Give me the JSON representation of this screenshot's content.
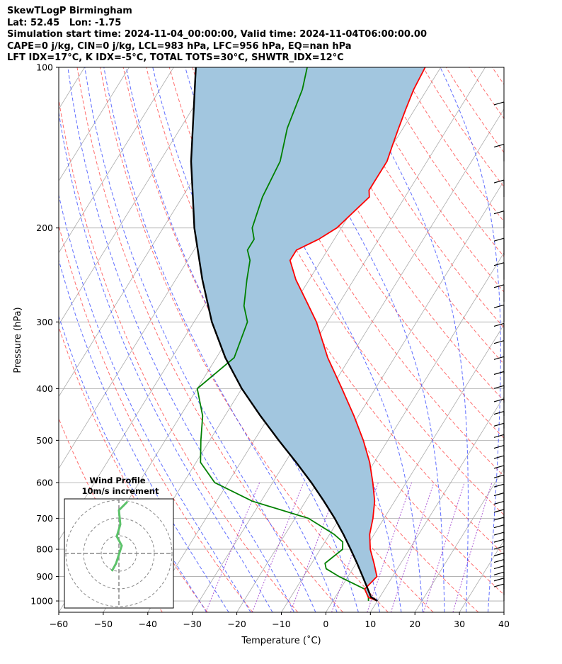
{
  "header": {
    "title": "SkewTLogP Birmingham",
    "location": "Lat: 52.45   Lon: -1.75",
    "times": "Simulation start time: 2024-11-04_00:00:00, Valid time: 2024-11-04T06:00:00.00",
    "indices_1": "CAPE=0 j/kg, CIN=0 j/kg, LCL=983 hPa, LFC=956 hPa, EQ=nan hPa",
    "indices_2": "LFT IDX=17°C, K IDX=-5°C, TOTAL TOTS=30°C, SHWTR_IDX=12°C"
  },
  "colors": {
    "temperature": "#ff0000",
    "dewpoint": "#008000",
    "parcel": "#000000",
    "fill": "#a2c6df",
    "dry_adiabat": "#ff5555",
    "moist_adiabat": "#4455ff",
    "mixing_ratio": "#9933cc",
    "isotherm": "#aaaaaa"
  },
  "chart_data": {
    "type": "line",
    "title": "",
    "xlabel": "Temperature (˚C)",
    "ylabel": "Pressure (hPa)",
    "xlim": [
      -60,
      40
    ],
    "ylim": [
      1050,
      100
    ],
    "y_scale": "log",
    "grid": true,
    "x_ticks": [
      -60,
      -50,
      -40,
      -30,
      -20,
      -10,
      0,
      10,
      20,
      30,
      40
    ],
    "x_tick_labels": [
      "−60",
      "−50",
      "−40",
      "−30",
      "−20",
      "−10",
      "0",
      "10",
      "20",
      "30",
      "40"
    ],
    "y_ticks": [
      1000,
      900,
      800,
      700,
      600,
      500,
      400,
      300,
      200,
      100
    ],
    "y_tick_labels": [
      "1000",
      "900",
      "800",
      "700",
      "600",
      "500",
      "400",
      "300",
      "200",
      "100"
    ],
    "series": [
      {
        "role": "temperature",
        "points": [
          [
            1000,
            10
          ],
          [
            985,
            7.5
          ],
          [
            950,
            5.5
          ],
          [
            900,
            6.5
          ],
          [
            850,
            4
          ],
          [
            800,
            1.2
          ],
          [
            750,
            -1
          ],
          [
            700,
            -2.5
          ],
          [
            650,
            -4.5
          ],
          [
            600,
            -7.5
          ],
          [
            550,
            -11
          ],
          [
            500,
            -15.5
          ],
          [
            450,
            -21
          ],
          [
            400,
            -27.5
          ],
          [
            350,
            -35
          ],
          [
            300,
            -42.5
          ],
          [
            275,
            -47.5
          ],
          [
            250,
            -53
          ],
          [
            230,
            -57
          ],
          [
            220,
            -57
          ],
          [
            210,
            -53.5
          ],
          [
            200,
            -51
          ],
          [
            175,
            -48
          ],
          [
            170,
            -49
          ],
          [
            160,
            -49
          ],
          [
            150,
            -49
          ],
          [
            140,
            -50
          ],
          [
            130,
            -51
          ],
          [
            120,
            -52
          ],
          [
            110,
            -53
          ],
          [
            100,
            -53.5
          ]
        ]
      },
      {
        "role": "dewpoint",
        "points": [
          [
            1000,
            8
          ],
          [
            985,
            7.5
          ],
          [
            950,
            5.5
          ],
          [
            900,
            -2
          ],
          [
            870,
            -6
          ],
          [
            850,
            -7
          ],
          [
            800,
            -5
          ],
          [
            775,
            -6
          ],
          [
            750,
            -9
          ],
          [
            700,
            -17
          ],
          [
            650,
            -32
          ],
          [
            600,
            -43
          ],
          [
            550,
            -49
          ],
          [
            500,
            -52
          ],
          [
            450,
            -55
          ],
          [
            400,
            -60
          ],
          [
            350,
            -56
          ],
          [
            300,
            -58
          ],
          [
            280,
            -61
          ],
          [
            250,
            -64
          ],
          [
            230,
            -66
          ],
          [
            220,
            -68
          ],
          [
            210,
            -68
          ],
          [
            200,
            -70
          ],
          [
            175,
            -72
          ],
          [
            150,
            -73
          ],
          [
            130,
            -76
          ],
          [
            110,
            -78
          ],
          [
            100,
            -80
          ]
        ]
      },
      {
        "role": "parcel",
        "points": [
          [
            1000,
            10
          ],
          [
            983,
            8.0
          ],
          [
            950,
            6.2
          ],
          [
            900,
            3.3
          ],
          [
            850,
            0.2
          ],
          [
            800,
            -3.2
          ],
          [
            750,
            -6.9
          ],
          [
            700,
            -11.1
          ],
          [
            650,
            -15.9
          ],
          [
            600,
            -21.3
          ],
          [
            550,
            -27.5
          ],
          [
            500,
            -34.5
          ],
          [
            450,
            -42.0
          ],
          [
            400,
            -50.0
          ],
          [
            350,
            -58.0
          ],
          [
            300,
            -66.0
          ],
          [
            250,
            -74.0
          ],
          [
            200,
            -83.0
          ],
          [
            150,
            -93.0
          ],
          [
            100,
            -105.0
          ]
        ]
      }
    ]
  },
  "hodograph": {
    "title_1": "Wind Profile",
    "title_2": "10m/s increment"
  }
}
